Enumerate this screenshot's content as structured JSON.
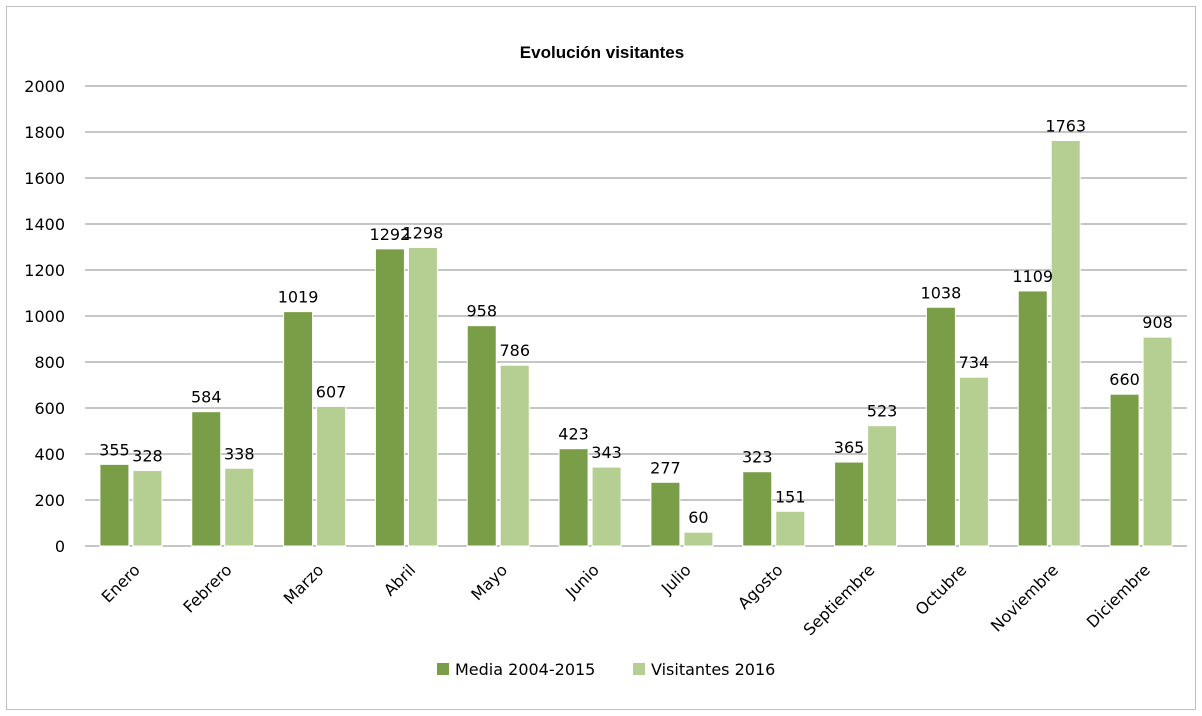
{
  "chart_data": {
    "type": "bar",
    "title": "Evolución visitantes",
    "categories": [
      "Enero",
      "Febrero",
      "Marzo",
      "Abril",
      "Mayo",
      "Junio",
      "Julio",
      "Agosto",
      "Septiembre",
      "Octubre",
      "Noviembre",
      "Diciembre"
    ],
    "series": [
      {
        "name": "Media 2004-2015",
        "values": [
          355,
          584,
          1019,
          1292,
          958,
          423,
          277,
          323,
          365,
          1038,
          1109,
          660
        ],
        "color": "#7a9e47"
      },
      {
        "name": "Visitantes 2016",
        "values": [
          328,
          338,
          607,
          1298,
          786,
          343,
          60,
          151,
          523,
          734,
          1763,
          908
        ],
        "color": "#b5cf92"
      }
    ],
    "ylim": [
      0,
      2000
    ],
    "yticks": [
      0,
      200,
      400,
      600,
      800,
      1000,
      1200,
      1400,
      1600,
      1800,
      2000
    ],
    "grid": true,
    "legend_position": "bottom",
    "xlabel": "",
    "ylabel": ""
  }
}
